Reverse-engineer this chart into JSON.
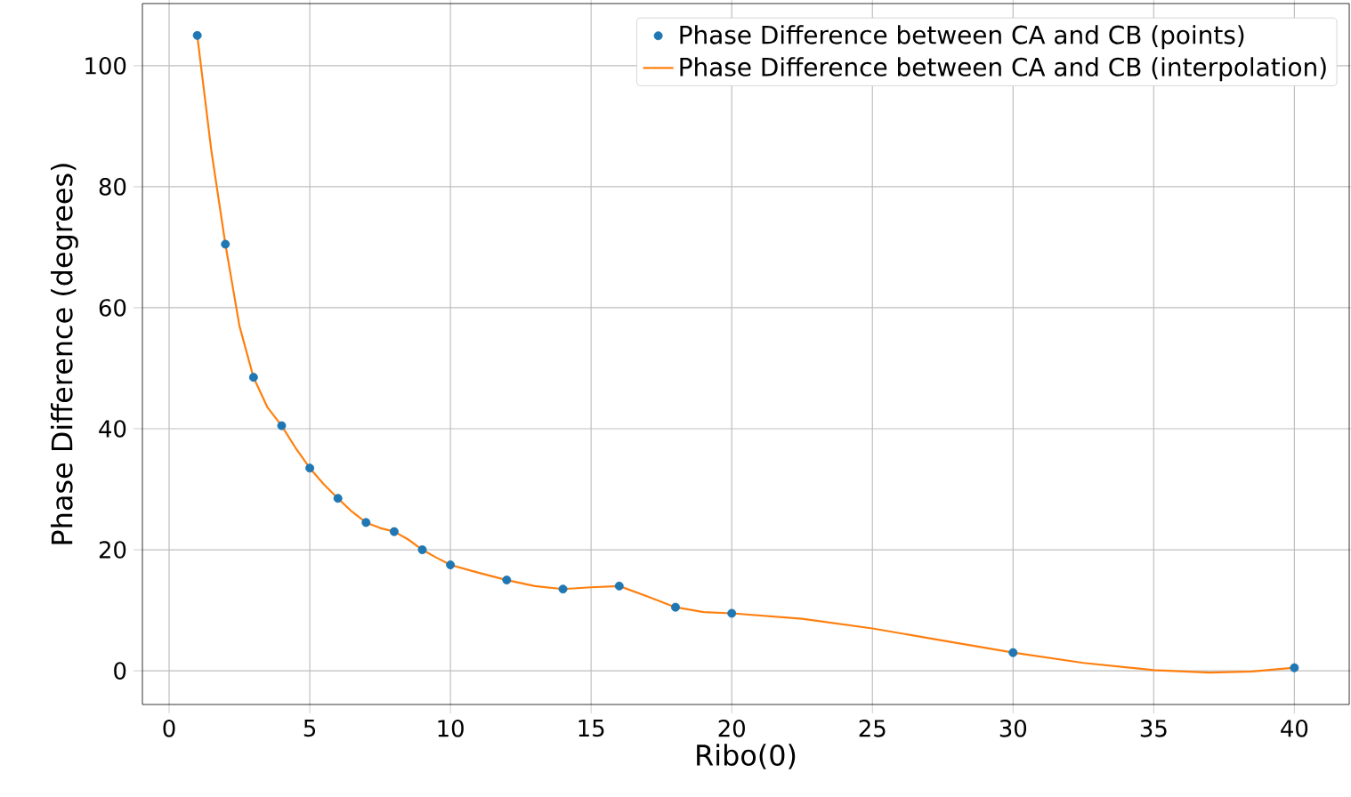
{
  "chart_data": {
    "type": "scatter",
    "xlabel": "Ribo(0)",
    "ylabel": "Phase Difference (degrees)",
    "xlim": [
      -0.95,
      41.95
    ],
    "ylim": [
      -5.57,
      110.27
    ],
    "xticks": [
      0,
      5,
      10,
      15,
      20,
      25,
      30,
      35,
      40
    ],
    "yticks": [
      0,
      20,
      40,
      60,
      80,
      100
    ],
    "grid": true,
    "legend": "top right",
    "series": [
      {
        "name": "Phase Difference between CA and CB (points)",
        "marker": "circle",
        "color": "#1f77b4",
        "x": [
          1,
          2,
          3,
          4,
          5,
          6,
          7,
          8,
          9,
          10,
          12,
          14,
          16,
          18,
          20,
          30,
          40
        ],
        "values": [
          105,
          70.5,
          48.5,
          40.5,
          33.5,
          28.5,
          24.5,
          23,
          20,
          17.5,
          15,
          13.5,
          14,
          10.5,
          9.5,
          3,
          0.5
        ]
      },
      {
        "name": "Phase Difference between CA and CB (interpolation)",
        "type": "line",
        "marker": "none",
        "color": "#ff7f0e",
        "x": [
          1,
          1.5,
          2,
          2.5,
          3,
          3.5,
          4,
          4.5,
          5,
          5.5,
          6,
          6.5,
          7,
          7.5,
          8,
          8.5,
          9,
          9.5,
          10,
          11,
          12,
          13,
          14,
          15,
          16,
          17,
          18,
          19,
          20,
          22.5,
          25,
          27.5,
          30,
          32.5,
          35,
          37,
          38.5,
          40
        ],
        "values": [
          105,
          86,
          70.5,
          57,
          48.5,
          43.5,
          40.5,
          36.8,
          33.5,
          30.8,
          28.5,
          26.3,
          24.5,
          23.6,
          23,
          21.7,
          20,
          18.7,
          17.5,
          16.2,
          15,
          14,
          13.5,
          13.8,
          14,
          12.3,
          10.5,
          9.7,
          9.5,
          8.6,
          7,
          5,
          3,
          1.3,
          0.1,
          -0.3,
          -0.1,
          0.5
        ]
      }
    ]
  }
}
